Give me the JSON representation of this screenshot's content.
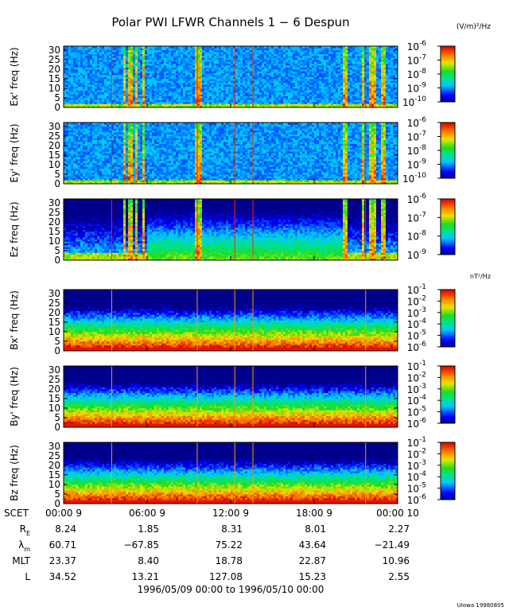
{
  "chart_data": {
    "type": "heatmap",
    "title": "Polar PWI LFWR Channels 1 − 6 Despun",
    "panels": [
      {
        "id": "ex",
        "ylabel": "Ex' freq (Hz)",
        "unit": "(V/m)²/Hz",
        "colorbar_ticks": [
          [
            "10",
            "-6"
          ],
          [
            "10",
            "-7"
          ],
          [
            "10",
            "-8"
          ],
          [
            "10",
            "-9"
          ],
          [
            "10",
            "-10"
          ]
        ],
        "cmin": -10,
        "cmax": -6
      },
      {
        "id": "ey",
        "ylabel": "Ey' freq (Hz)",
        "unit": "",
        "colorbar_ticks": [
          [
            "10",
            "-6"
          ],
          [
            "10",
            "-7"
          ],
          [
            "10",
            "-8"
          ],
          [
            "10",
            "-9"
          ],
          [
            "10",
            "-10"
          ]
        ],
        "cmin": -10,
        "cmax": -6
      },
      {
        "id": "ez",
        "ylabel": "Ez freq (Hz)",
        "unit": "",
        "colorbar_ticks": [
          [
            "10",
            "-6"
          ],
          [
            "10",
            "-7"
          ],
          [
            "10",
            "-8"
          ],
          [
            "10",
            "-9"
          ]
        ],
        "cmin": -9,
        "cmax": -6
      },
      {
        "id": "bx",
        "ylabel": "Bx' freq (Hz)",
        "unit": "nT²/Hz",
        "colorbar_ticks": [
          [
            "10",
            "-1"
          ],
          [
            "10",
            "-2"
          ],
          [
            "10",
            "-3"
          ],
          [
            "10",
            "-4"
          ],
          [
            "10",
            "-5"
          ],
          [
            "10",
            "-6"
          ]
        ],
        "cmin": -6,
        "cmax": -1
      },
      {
        "id": "by",
        "ylabel": "By' freq (Hz)",
        "unit": "",
        "colorbar_ticks": [
          [
            "10",
            "-1"
          ],
          [
            "10",
            "-2"
          ],
          [
            "10",
            "-3"
          ],
          [
            "10",
            "-4"
          ],
          [
            "10",
            "-5"
          ],
          [
            "10",
            "-6"
          ]
        ],
        "cmin": -6,
        "cmax": -1
      },
      {
        "id": "bz",
        "ylabel": "Bz freq (Hz)",
        "unit": "",
        "colorbar_ticks": [
          [
            "10",
            "-1"
          ],
          [
            "10",
            "-2"
          ],
          [
            "10",
            "-3"
          ],
          [
            "10",
            "-4"
          ],
          [
            "10",
            "-5"
          ],
          [
            "10",
            "-6"
          ]
        ],
        "cmin": -6,
        "cmax": -1
      }
    ],
    "y_ticks": [
      "0",
      "5",
      "10",
      "15",
      "20",
      "25",
      "30"
    ],
    "ylim": [
      0,
      32
    ],
    "x_ticks": [
      "00:00  9",
      "06:00  9",
      "12:00  9",
      "18:00  9",
      "00:00 10"
    ],
    "x_tick_hours": [
      0,
      6,
      12,
      18,
      24
    ],
    "xlim_hours": [
      0,
      24
    ],
    "ephemeris": {
      "row_labels": [
        "SCET",
        "R",
        "λ",
        "MLT",
        "L"
      ],
      "row_subscripts": [
        "",
        "E",
        "m",
        "",
        ""
      ],
      "rows": [
        [
          "8.24",
          "1.85",
          "8.31",
          "8.01",
          "2.27"
        ],
        [
          "60.71",
          "−67.85",
          "75.22",
          "43.64",
          "−21.49"
        ],
        [
          "23.37",
          "8.40",
          "18.78",
          "22.87",
          "10.96"
        ],
        [
          "34.52",
          "13.21",
          "127.08",
          "15.23",
          "2.55"
        ]
      ]
    },
    "date_range": "1996/05/09 00:00 to 1996/05/10 00:00",
    "footer": "UIowa 19980805",
    "colormap": "rainbow (blue low → red high)"
  }
}
